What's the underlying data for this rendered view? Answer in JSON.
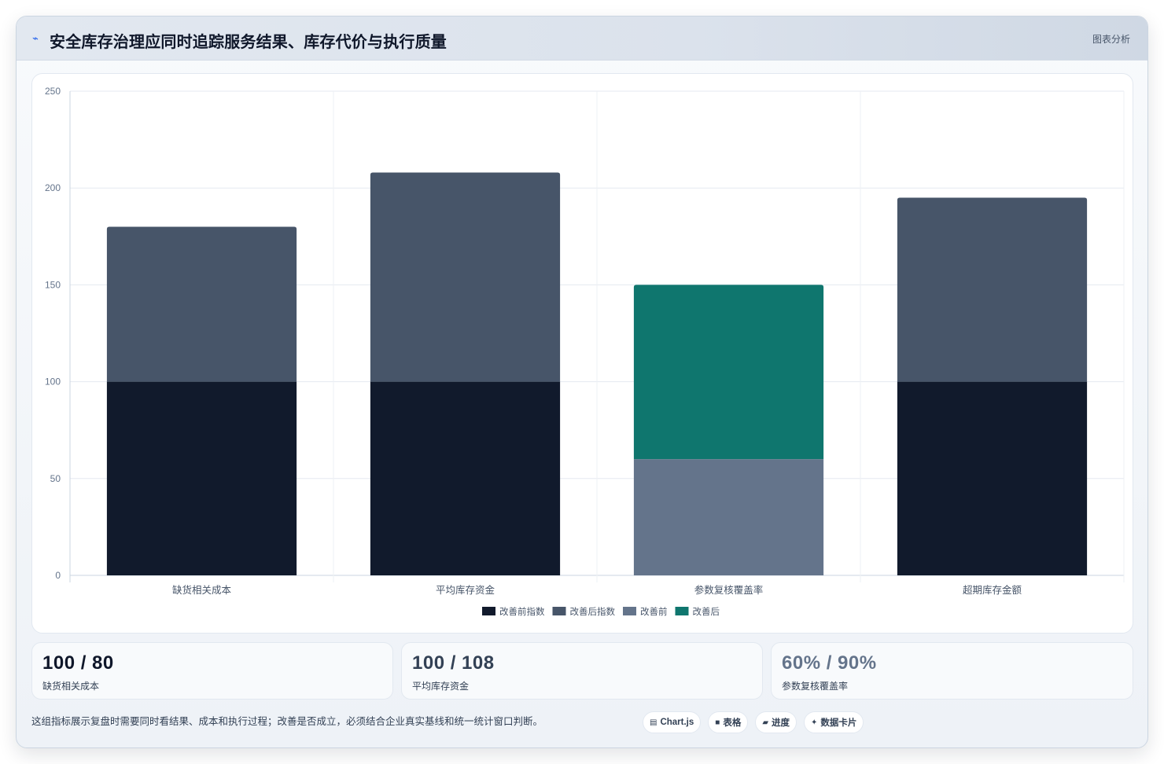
{
  "header": {
    "icon": "trend-icon",
    "title": "安全库存治理应同时追踪服务结果、库存代价与执行质量",
    "badge": "图表分析"
  },
  "chart_data": {
    "type": "bar",
    "stacked": true,
    "categories": [
      "缺货相关成本",
      "平均库存资金",
      "参数复核覆盖率",
      "超期库存金额"
    ],
    "series": [
      {
        "name": "改善前指数",
        "color": "#111a2c",
        "values": [
          100,
          100,
          null,
          100
        ]
      },
      {
        "name": "改善后指数",
        "color": "#475569",
        "values": [
          80,
          108,
          null,
          95
        ]
      },
      {
        "name": "改善前",
        "color": "#64748b",
        "values": [
          null,
          null,
          60,
          null
        ]
      },
      {
        "name": "改善后",
        "color": "#0f766e",
        "values": [
          null,
          null,
          90,
          null
        ]
      }
    ],
    "ylim": [
      0,
      250
    ],
    "yticks": [
      0,
      50,
      100,
      150,
      200,
      250
    ],
    "grid": true,
    "legend_position": "bottom"
  },
  "stats": [
    {
      "value": "100 / 80",
      "label": "缺货相关成本",
      "color": "#0f172a"
    },
    {
      "value": "100 / 108",
      "label": "平均库存资金",
      "color": "#334155"
    },
    {
      "value": "60% / 90%",
      "label": "参数复核覆盖率",
      "color": "#64748b"
    }
  ],
  "footnote": "这组指标展示复盘时需要同时看结果、成本和执行过程；改善是否成立，必须结合企业真实基线和统一统计窗口判断。",
  "chips": [
    {
      "icon": "chart-icon",
      "glyph": "▤",
      "label": "Chart.js"
    },
    {
      "icon": "table-icon",
      "glyph": "■",
      "label": "表格"
    },
    {
      "icon": "progress-icon",
      "glyph": "▰",
      "label": "进度"
    },
    {
      "icon": "sparkle-icon",
      "glyph": "✦",
      "label": "数据卡片"
    }
  ]
}
